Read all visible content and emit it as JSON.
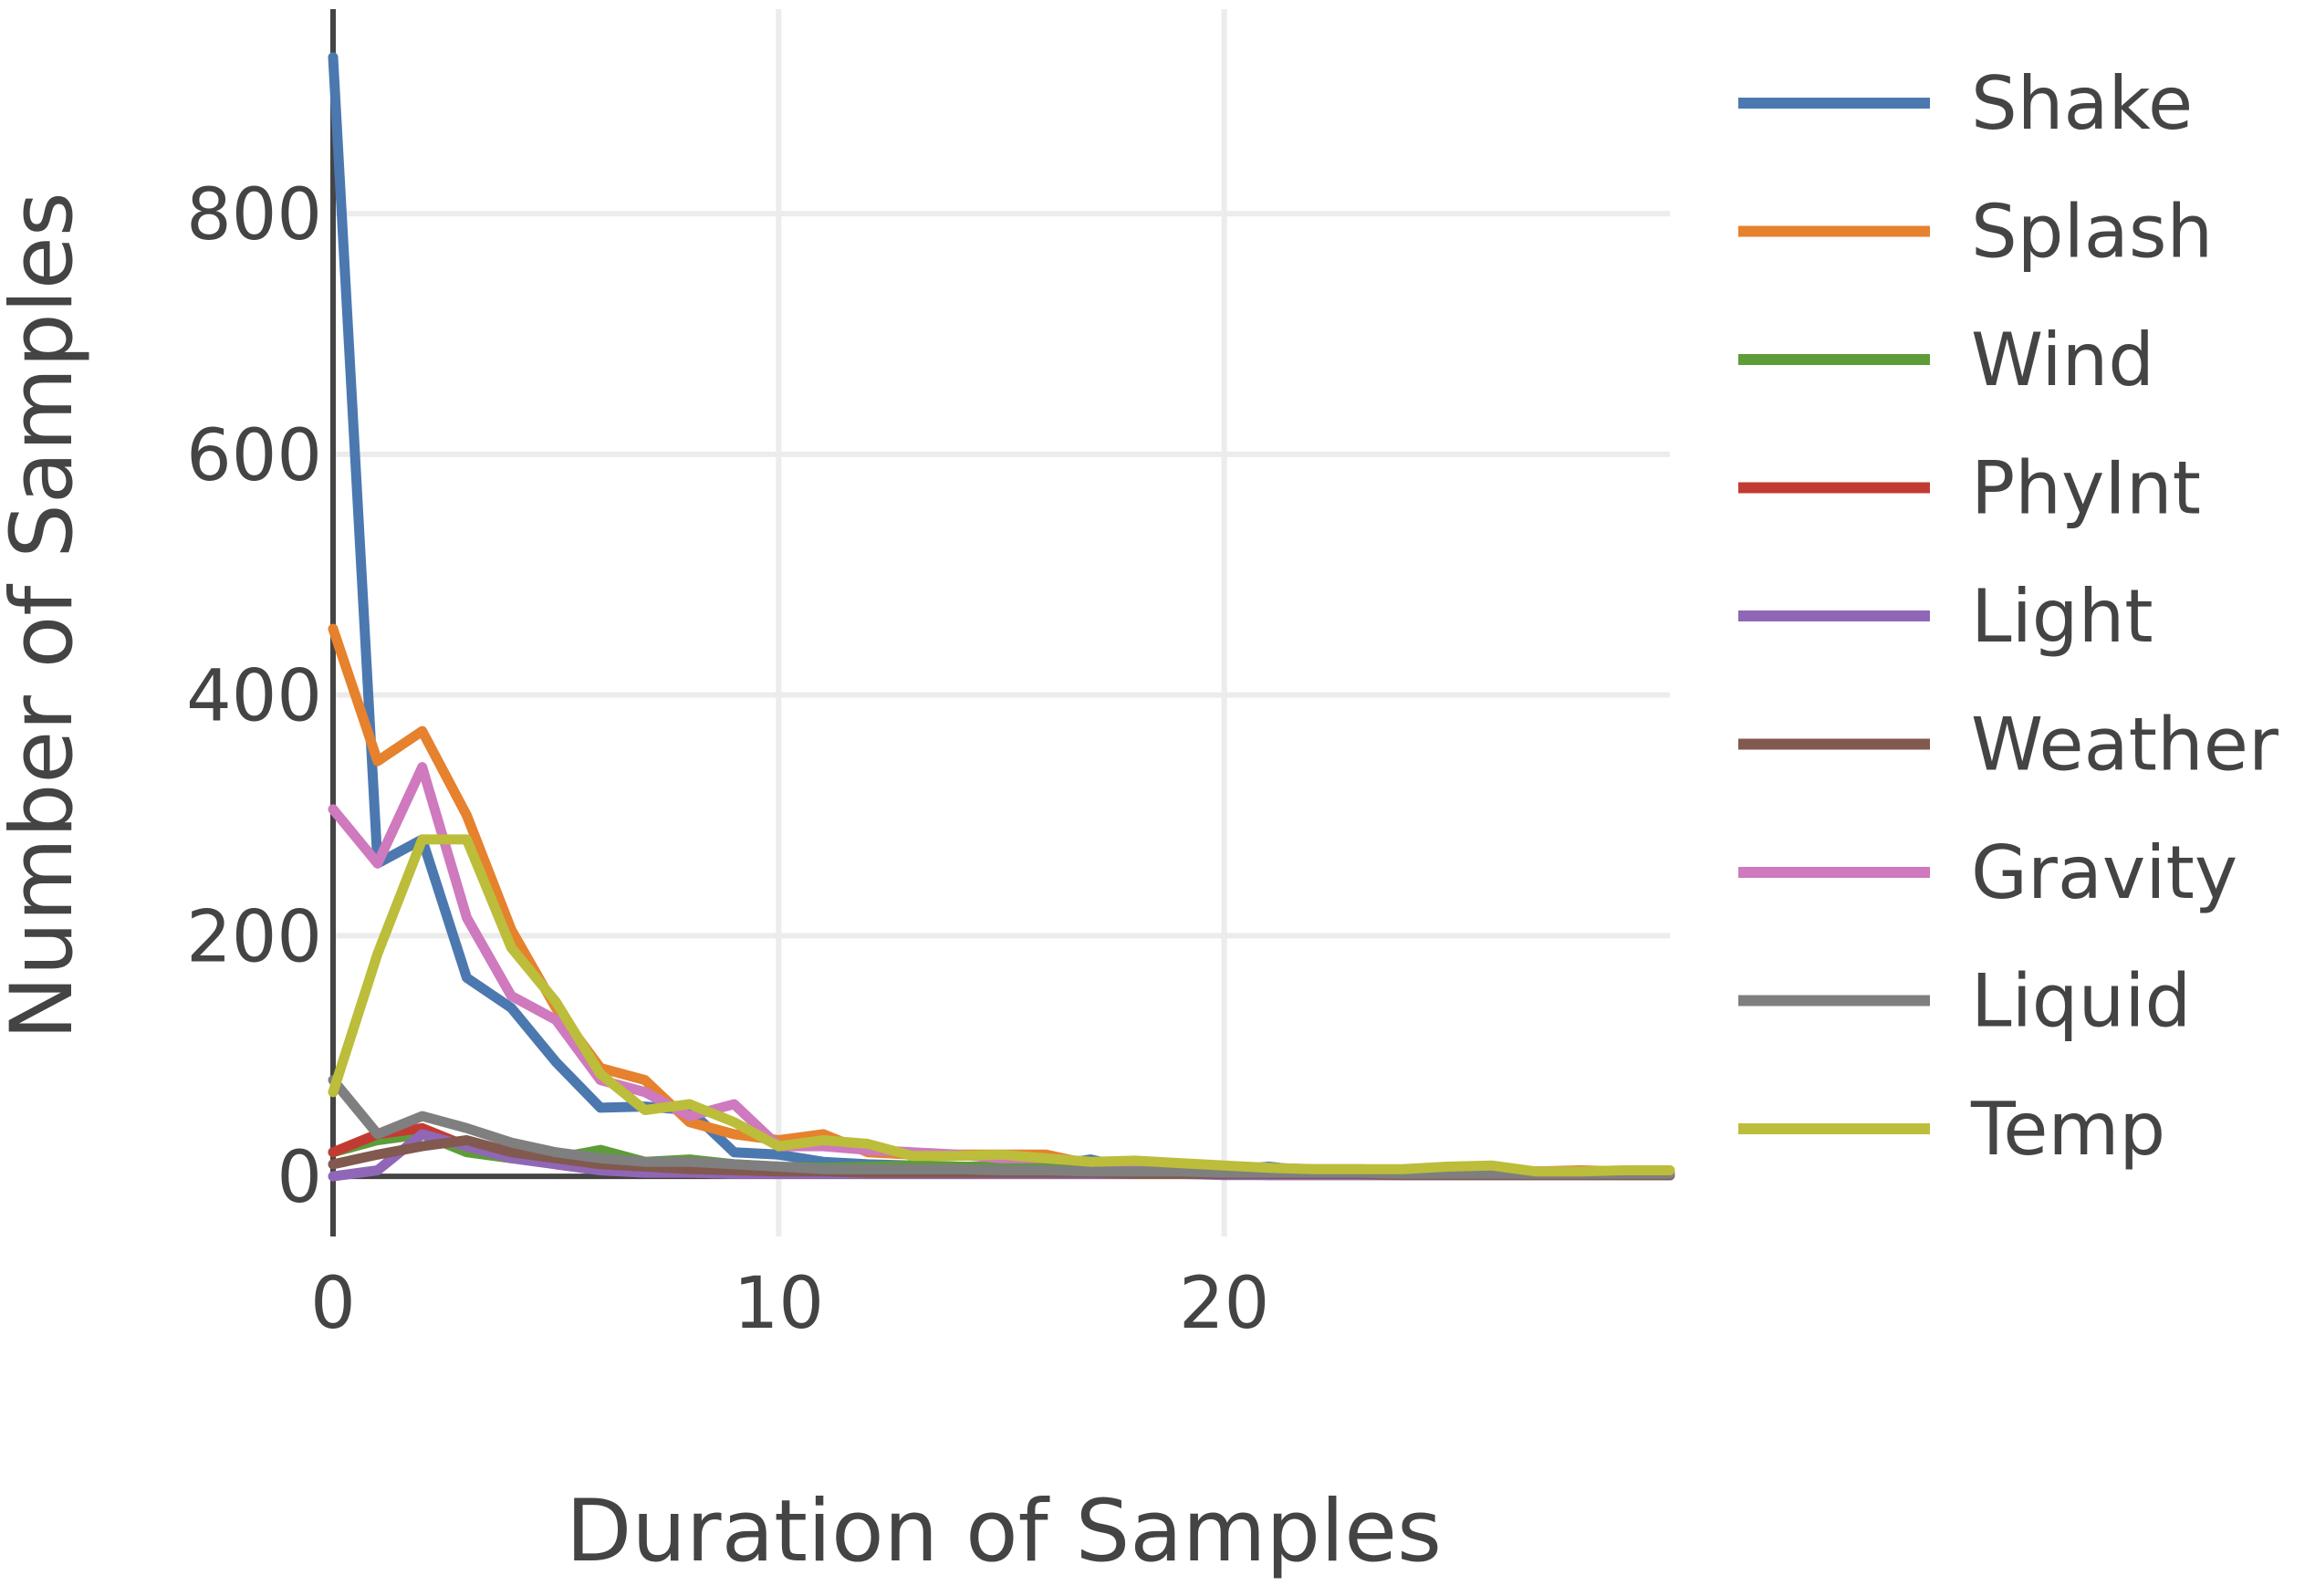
{
  "chart_data": {
    "type": "line",
    "title": "",
    "xlabel": "Duration of Samples",
    "ylabel": "Number of Samples",
    "xlim": [
      0,
      30
    ],
    "ylim": [
      -50,
      970
    ],
    "x_ticks": [
      0,
      10,
      20
    ],
    "y_ticks": [
      0,
      200,
      400,
      600,
      800
    ],
    "grid": true,
    "legend_placement": "right",
    "x": [
      0,
      1,
      2,
      3,
      4,
      5,
      6,
      7,
      8,
      9,
      10,
      11,
      12,
      13,
      14,
      15,
      16,
      17,
      18,
      19,
      20,
      21,
      22,
      23,
      24,
      25,
      26,
      27,
      28,
      29,
      30
    ],
    "series": [
      {
        "name": "Shake",
        "color": "#4c78b0",
        "values": [
          930,
          260,
          280,
          165,
          140,
          95,
          57,
          58,
          55,
          20,
          18,
          12,
          10,
          9,
          8,
          8,
          8,
          14,
          6,
          6,
          5,
          8,
          4,
          5,
          3,
          4,
          2,
          2,
          2,
          1,
          1
        ]
      },
      {
        "name": "Splash",
        "color": "#e6812e",
        "values": [
          455,
          345,
          370,
          300,
          205,
          140,
          90,
          80,
          45,
          35,
          30,
          35,
          20,
          18,
          18,
          18,
          18,
          10,
          8,
          8,
          6,
          5,
          5,
          5,
          5,
          5,
          5,
          4,
          5,
          4,
          4
        ]
      },
      {
        "name": "Wind",
        "color": "#5e9c3a",
        "values": [
          20,
          30,
          35,
          20,
          15,
          15,
          22,
          12,
          14,
          10,
          8,
          7,
          8,
          9,
          8,
          8,
          7,
          6,
          6,
          5,
          4,
          4,
          4,
          3,
          3,
          3,
          2,
          2,
          2,
          2,
          2
        ]
      },
      {
        "name": "PhyInt",
        "color": "#c23b32",
        "values": [
          20,
          35,
          40,
          25,
          18,
          10,
          5,
          3,
          3,
          2,
          2,
          2,
          2,
          2,
          2,
          2,
          2,
          2,
          2,
          2,
          2,
          1,
          1,
          1,
          1,
          1,
          1,
          1,
          1,
          1,
          1
        ]
      },
      {
        "name": "Light",
        "color": "#9067b7",
        "values": [
          0,
          5,
          35,
          25,
          15,
          10,
          5,
          3,
          3,
          2,
          2,
          2,
          2,
          2,
          2,
          2,
          2,
          2,
          2,
          2,
          1,
          1,
          1,
          1,
          1,
          1,
          1,
          1,
          1,
          1,
          1
        ]
      },
      {
        "name": "Weather",
        "color": "#82594f",
        "values": [
          10,
          18,
          25,
          30,
          20,
          15,
          10,
          8,
          6,
          5,
          4,
          4,
          3,
          3,
          3,
          3,
          3,
          3,
          2,
          2,
          2,
          2,
          2,
          2,
          1,
          1,
          1,
          1,
          1,
          1,
          1
        ]
      },
      {
        "name": "Gravity",
        "color": "#cf79be",
        "values": [
          305,
          260,
          340,
          215,
          150,
          130,
          80,
          70,
          50,
          60,
          25,
          25,
          22,
          20,
          18,
          15,
          15,
          12,
          10,
          10,
          8,
          7,
          6,
          6,
          5,
          5,
          4,
          4,
          4,
          3,
          3
        ]
      },
      {
        "name": "Liquid",
        "color": "#7f7f7f",
        "values": [
          80,
          35,
          50,
          40,
          28,
          20,
          15,
          12,
          12,
          10,
          8,
          6,
          6,
          6,
          6,
          5,
          5,
          4,
          4,
          4,
          3,
          3,
          3,
          3,
          2,
          2,
          2,
          2,
          2,
          2,
          2
        ]
      },
      {
        "name": "Temp",
        "color": "#bcbd3a",
        "values": [
          70,
          185,
          280,
          280,
          190,
          145,
          85,
          55,
          60,
          45,
          25,
          30,
          27,
          17,
          17,
          18,
          15,
          12,
          13,
          11,
          9,
          7,
          6,
          6,
          6,
          8,
          9,
          4,
          4,
          5,
          5
        ]
      }
    ]
  }
}
